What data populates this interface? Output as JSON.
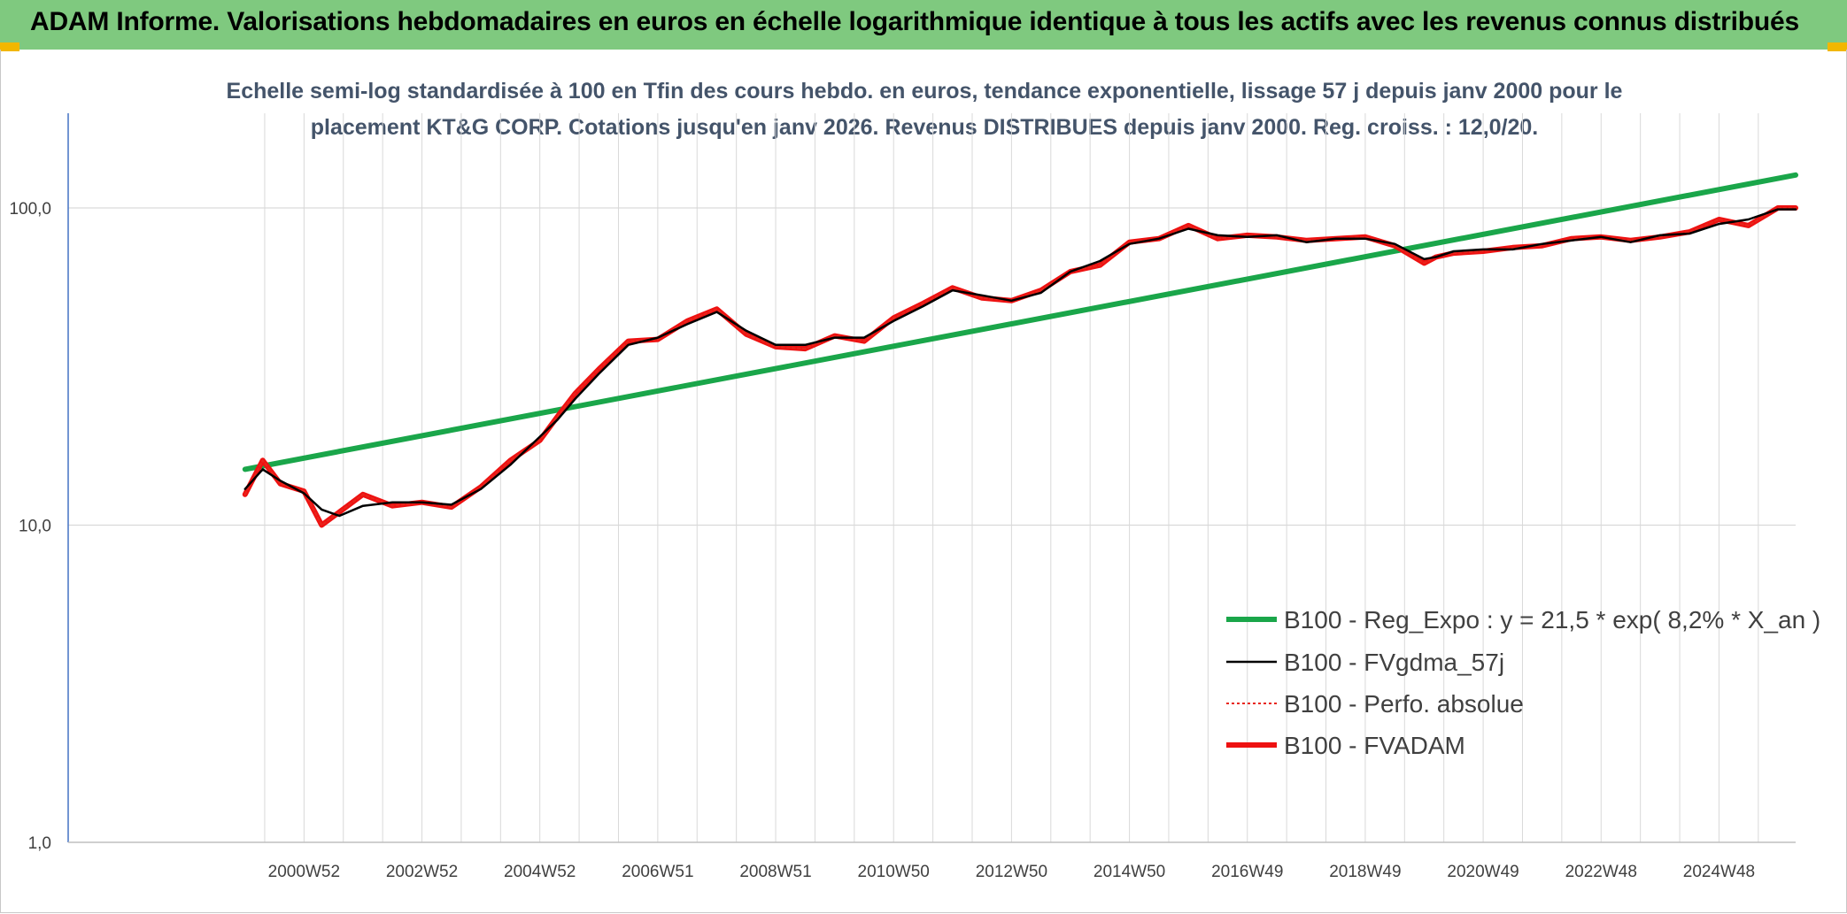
{
  "banner": {
    "title": "ADAM Informe. Valorisations hebdomadaires en euros en échelle logarithmique identique à tous les actifs avec les revenus connus distribués"
  },
  "colors": {
    "banner_bg": "#7fc97f",
    "regression": "#1aa64a",
    "fvgdma": "#000000",
    "perfo": "#e8261c",
    "fvadam": "#ee1111",
    "accent_corner": "#f2b700"
  },
  "chart_data": {
    "type": "line",
    "title_line1": "Echelle semi-log standardisée à 100 en Tfin des cours hebdo. en euros, tendance exponentielle, lissage 57 j depuis janv 2000 pour le",
    "title_line2": "placement KT&G CORP. Cotations jusqu'en janv 2026. Revenus DISTRIBUES depuis janv 2000. Reg. croiss. : 12,0/20.",
    "y_scale": "log",
    "ylim": [
      1,
      200
    ],
    "y_ticks": [
      {
        "value": 100,
        "label": "100,0"
      },
      {
        "value": 10,
        "label": "10,0"
      },
      {
        "value": 1,
        "label": "1,0"
      }
    ],
    "xlim": [
      1997,
      2026.3
    ],
    "x_ticks": [
      {
        "value": 2001,
        "label": "2000W52"
      },
      {
        "value": 2003,
        "label": "2002W52"
      },
      {
        "value": 2005,
        "label": "2004W52"
      },
      {
        "value": 2007,
        "label": "2006W51"
      },
      {
        "value": 2009,
        "label": "2008W51"
      },
      {
        "value": 2011,
        "label": "2010W50"
      },
      {
        "value": 2013,
        "label": "2012W50"
      },
      {
        "value": 2015,
        "label": "2014W50"
      },
      {
        "value": 2017,
        "label": "2016W49"
      },
      {
        "value": 2019,
        "label": "2018W49"
      },
      {
        "value": 2021,
        "label": "2020W49"
      },
      {
        "value": 2023,
        "label": "2022W48"
      },
      {
        "value": 2025,
        "label": "2024W48"
      }
    ],
    "grid": true,
    "legend_position": "bottom-right",
    "series": [
      {
        "name": "B100 - Reg_Expo : y = 21,5 * exp( 8,2% *  X_an )",
        "style": "thick-green",
        "x": [
          2000.0,
          2026.3
        ],
        "y": [
          15.0,
          127.0
        ]
      },
      {
        "name": "B100 - FVgdma_57j",
        "style": "thin-black",
        "x": [
          2000.0,
          2000.3,
          2000.6,
          2001.0,
          2001.3,
          2001.6,
          2002.0,
          2002.5,
          2003.0,
          2003.5,
          2004.0,
          2004.5,
          2005.0,
          2005.3,
          2005.6,
          2006.0,
          2006.5,
          2007.0,
          2007.5,
          2008.0,
          2008.5,
          2009.0,
          2009.5,
          2010.0,
          2010.5,
          2011.0,
          2011.5,
          2012.0,
          2012.5,
          2013.0,
          2013.5,
          2014.0,
          2014.5,
          2015.0,
          2015.5,
          2016.0,
          2016.5,
          2017.0,
          2017.5,
          2018.0,
          2018.5,
          2019.0,
          2019.5,
          2020.0,
          2020.2,
          2020.5,
          2021.0,
          2021.5,
          2022.0,
          2022.5,
          2023.0,
          2023.5,
          2024.0,
          2024.5,
          2025.0,
          2025.5,
          2026.0,
          2026.3
        ],
        "y": [
          13.0,
          15.0,
          13.8,
          12.6,
          11.2,
          10.7,
          11.5,
          11.8,
          11.8,
          11.6,
          13.0,
          15.5,
          19.0,
          21.5,
          25.0,
          30.0,
          37.0,
          39.0,
          43.0,
          47.0,
          41.0,
          37.0,
          37.0,
          39.0,
          39.0,
          44.0,
          49.0,
          55.0,
          53.0,
          51.0,
          54.0,
          63.0,
          68.0,
          77.0,
          80.0,
          86.0,
          82.0,
          81.0,
          82.0,
          78.0,
          80.0,
          80.0,
          77.0,
          69.0,
          70.0,
          73.0,
          74.0,
          74.0,
          77.0,
          79.0,
          81.0,
          78.0,
          82.0,
          83.0,
          89.0,
          92.0,
          99.0,
          99.0
        ]
      },
      {
        "name": "B100 - Perfo. absolue",
        "style": "dotted-red",
        "x": [
          2000.0,
          2000.3,
          2000.6,
          2001.0,
          2001.3,
          2001.6,
          2002.0,
          2002.5,
          2003.0,
          2003.5,
          2004.0,
          2004.5,
          2005.0,
          2005.3,
          2005.6,
          2006.0,
          2006.5,
          2007.0,
          2007.5,
          2008.0,
          2008.5,
          2009.0,
          2009.5,
          2010.0,
          2010.5,
          2011.0,
          2011.5,
          2012.0,
          2012.5,
          2013.0,
          2013.5,
          2014.0,
          2014.5,
          2015.0,
          2015.5,
          2016.0,
          2016.5,
          2017.0,
          2017.5,
          2018.0,
          2018.5,
          2019.0,
          2019.5,
          2020.0,
          2020.2,
          2020.5,
          2021.0,
          2021.5,
          2022.0,
          2022.5,
          2023.0,
          2023.5,
          2024.0,
          2024.5,
          2025.0,
          2025.5,
          2026.0,
          2026.3
        ],
        "y": [
          12.5,
          16.0,
          13.5,
          12.8,
          10.0,
          11.0,
          12.5,
          11.5,
          11.8,
          11.4,
          13.2,
          16.0,
          18.5,
          22.0,
          26.0,
          31.0,
          38.0,
          38.5,
          44.0,
          48.0,
          40.0,
          36.5,
          36.0,
          39.5,
          38.0,
          45.0,
          50.0,
          56.0,
          52.0,
          51.0,
          55.0,
          63.0,
          66.0,
          78.0,
          80.0,
          88.0,
          80.0,
          82.0,
          81.0,
          79.0,
          80.0,
          81.0,
          76.0,
          67.0,
          70.0,
          72.0,
          73.0,
          75.0,
          76.0,
          80.0,
          81.0,
          79.0,
          81.0,
          84.0,
          92.0,
          88.0,
          100.0,
          100.0
        ]
      },
      {
        "name": "B100 - FVADAM",
        "style": "thick-red",
        "x": [
          2000.0,
          2000.3,
          2000.6,
          2001.0,
          2001.3,
          2001.6,
          2002.0,
          2002.5,
          2003.0,
          2003.5,
          2004.0,
          2004.5,
          2005.0,
          2005.3,
          2005.6,
          2006.0,
          2006.5,
          2007.0,
          2007.5,
          2008.0,
          2008.5,
          2009.0,
          2009.5,
          2010.0,
          2010.5,
          2011.0,
          2011.5,
          2012.0,
          2012.5,
          2013.0,
          2013.5,
          2014.0,
          2014.5,
          2015.0,
          2015.5,
          2016.0,
          2016.5,
          2017.0,
          2017.5,
          2018.0,
          2018.5,
          2019.0,
          2019.5,
          2020.0,
          2020.2,
          2020.5,
          2021.0,
          2021.5,
          2022.0,
          2022.5,
          2023.0,
          2023.5,
          2024.0,
          2024.5,
          2025.0,
          2025.5,
          2026.0,
          2026.3
        ],
        "y": [
          12.5,
          16.0,
          13.5,
          12.8,
          10.0,
          11.0,
          12.5,
          11.5,
          11.8,
          11.4,
          13.2,
          16.0,
          18.5,
          22.0,
          26.0,
          31.0,
          38.0,
          38.5,
          44.0,
          48.0,
          40.0,
          36.5,
          36.0,
          39.5,
          38.0,
          45.0,
          50.0,
          56.0,
          52.0,
          51.0,
          55.0,
          63.0,
          66.0,
          78.0,
          80.0,
          88.0,
          80.0,
          82.0,
          81.0,
          79.0,
          80.0,
          81.0,
          76.0,
          67.0,
          70.0,
          72.0,
          73.0,
          75.0,
          76.0,
          80.0,
          81.0,
          79.0,
          81.0,
          84.0,
          92.0,
          88.0,
          100.0,
          100.0
        ]
      }
    ]
  }
}
